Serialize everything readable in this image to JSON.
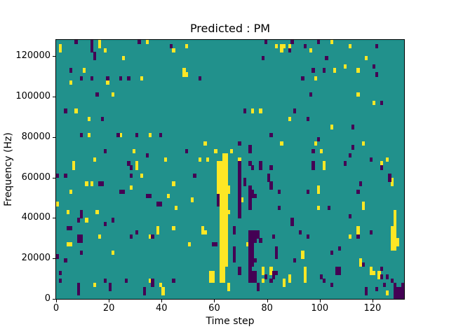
{
  "chart_data": {
    "type": "heatmap",
    "title": "Predicted : PM",
    "xlabel": "Time step",
    "ylabel": "Frequency (Hz)",
    "x_ticks": [
      0,
      20,
      40,
      60,
      80,
      100,
      120
    ],
    "y_ticks": [
      0,
      20000,
      40000,
      60000,
      80000,
      100000,
      120000
    ],
    "xlim": [
      0,
      132
    ],
    "ylim": [
      0,
      128000
    ],
    "grid_cols": 132,
    "grid_rows": 64,
    "row_height_hz": 2000,
    "colormap": "viridis",
    "colors": {
      "mid_value": "#21918c",
      "high_value": "#fde725",
      "low_value": "#440154",
      "figure_background": "#ffffff",
      "text": "#000000"
    },
    "legend_position": "none",
    "grid_lines": false,
    "cells": {
      "runs_format": "[column, row_start, row_end] inclusive vertical runs; row 0 = bottom (0 Hz), col 0 = leftmost time step",
      "yellow_runs": [
        [
          0,
          23,
          23
        ],
        [
          1,
          61,
          62
        ],
        [
          4,
          13,
          13
        ],
        [
          4,
          21,
          21
        ],
        [
          5,
          13,
          13
        ],
        [
          5,
          26,
          26
        ],
        [
          5,
          53,
          53
        ],
        [
          6,
          32,
          33
        ],
        [
          7,
          46,
          46
        ],
        [
          10,
          56,
          56
        ],
        [
          11,
          19,
          19
        ],
        [
          11,
          28,
          28
        ],
        [
          12,
          40,
          40
        ],
        [
          12,
          44,
          44
        ],
        [
          13,
          28,
          28
        ],
        [
          14,
          3,
          3
        ],
        [
          14,
          34,
          34
        ],
        [
          15,
          21,
          21
        ],
        [
          16,
          15,
          15
        ],
        [
          16,
          62,
          63
        ],
        [
          18,
          61,
          61
        ],
        [
          19,
          53,
          53
        ],
        [
          21,
          11,
          11
        ],
        [
          21,
          50,
          50
        ],
        [
          24,
          40,
          40
        ],
        [
          25,
          59,
          59
        ],
        [
          28,
          27,
          27
        ],
        [
          29,
          36,
          36
        ],
        [
          30,
          32,
          33
        ],
        [
          32,
          30,
          30
        ],
        [
          32,
          54,
          54
        ],
        [
          34,
          63,
          63
        ],
        [
          35,
          4,
          4
        ],
        [
          35,
          15,
          15
        ],
        [
          35,
          40,
          40
        ],
        [
          38,
          16,
          17
        ],
        [
          39,
          3,
          3
        ],
        [
          40,
          1,
          2
        ],
        [
          41,
          34,
          34
        ],
        [
          42,
          25,
          25
        ],
        [
          44,
          17,
          17
        ],
        [
          44,
          28,
          28
        ],
        [
          44,
          61,
          61
        ],
        [
          45,
          22,
          22
        ],
        [
          48,
          55,
          56
        ],
        [
          49,
          55,
          55
        ],
        [
          49,
          62,
          62
        ],
        [
          50,
          13,
          13
        ],
        [
          51,
          24,
          24
        ],
        [
          54,
          34,
          34
        ],
        [
          55,
          16,
          17
        ],
        [
          56,
          16,
          16
        ],
        [
          56,
          38,
          38
        ],
        [
          57,
          34,
          34
        ],
        [
          58,
          4,
          6
        ],
        [
          59,
          4,
          6
        ],
        [
          60,
          36,
          36
        ],
        [
          61,
          26,
          33
        ],
        [
          62,
          4,
          33
        ],
        [
          63,
          4,
          35
        ],
        [
          64,
          8,
          35
        ],
        [
          65,
          2,
          3
        ],
        [
          65,
          21,
          21
        ],
        [
          65,
          26,
          27
        ],
        [
          66,
          36,
          36
        ],
        [
          69,
          34,
          34
        ],
        [
          70,
          24,
          24
        ],
        [
          72,
          13,
          13
        ],
        [
          74,
          46,
          46
        ],
        [
          77,
          46,
          46
        ],
        [
          78,
          4,
          4
        ],
        [
          78,
          6,
          7
        ],
        [
          81,
          6,
          7
        ],
        [
          83,
          62,
          62
        ],
        [
          85,
          38,
          38
        ],
        [
          85,
          61,
          62
        ],
        [
          86,
          3,
          4
        ],
        [
          86,
          62,
          62
        ],
        [
          88,
          4,
          5
        ],
        [
          88,
          44,
          44
        ],
        [
          88,
          62,
          62
        ],
        [
          93,
          10,
          11
        ],
        [
          94,
          4,
          7
        ],
        [
          96,
          61,
          61
        ],
        [
          98,
          38,
          38
        ],
        [
          98,
          54,
          54
        ],
        [
          99,
          22,
          22
        ],
        [
          99,
          26,
          27
        ],
        [
          100,
          36,
          36
        ],
        [
          101,
          32,
          33
        ],
        [
          104,
          42,
          42
        ],
        [
          104,
          63,
          63
        ],
        [
          105,
          56,
          56
        ],
        [
          109,
          57,
          57
        ],
        [
          111,
          15,
          15
        ],
        [
          111,
          62,
          62
        ],
        [
          114,
          16,
          17
        ],
        [
          114,
          50,
          50
        ],
        [
          114,
          56,
          56
        ],
        [
          115,
          8,
          9
        ],
        [
          116,
          22,
          23
        ],
        [
          116,
          38,
          38
        ],
        [
          117,
          59,
          59
        ],
        [
          119,
          6,
          7
        ],
        [
          120,
          6,
          6
        ],
        [
          120,
          48,
          48
        ],
        [
          122,
          5,
          6
        ],
        [
          123,
          33,
          33
        ],
        [
          125,
          1,
          1
        ],
        [
          125,
          34,
          34
        ],
        [
          127,
          12,
          17
        ],
        [
          127,
          28,
          29
        ],
        [
          128,
          12,
          21
        ],
        [
          129,
          13,
          14
        ]
      ],
      "dark_runs": [
        [
          0,
          10,
          10
        ],
        [
          0,
          30,
          30
        ],
        [
          1,
          4,
          4
        ],
        [
          1,
          6,
          6
        ],
        [
          3,
          9,
          9
        ],
        [
          3,
          30,
          30
        ],
        [
          3,
          46,
          46
        ],
        [
          4,
          17,
          17
        ],
        [
          5,
          17,
          17
        ],
        [
          5,
          56,
          56
        ],
        [
          7,
          63,
          63
        ],
        [
          8,
          1,
          3
        ],
        [
          8,
          14,
          15
        ],
        [
          8,
          19,
          19
        ],
        [
          9,
          11,
          11
        ],
        [
          9,
          14,
          15
        ],
        [
          9,
          20,
          21
        ],
        [
          9,
          40,
          40
        ],
        [
          9,
          54,
          54
        ],
        [
          13,
          54,
          54
        ],
        [
          13,
          61,
          63
        ],
        [
          14,
          59,
          60
        ],
        [
          15,
          50,
          50
        ],
        [
          16,
          28,
          28
        ],
        [
          17,
          28,
          28
        ],
        [
          17,
          44,
          44
        ],
        [
          18,
          4,
          4
        ],
        [
          18,
          18,
          18
        ],
        [
          18,
          36,
          36
        ],
        [
          19,
          54,
          54
        ],
        [
          20,
          2,
          3
        ],
        [
          21,
          19,
          19
        ],
        [
          23,
          40,
          40
        ],
        [
          24,
          26,
          26
        ],
        [
          24,
          54,
          54
        ],
        [
          25,
          26,
          26
        ],
        [
          26,
          4,
          4
        ],
        [
          27,
          33,
          33
        ],
        [
          27,
          54,
          54
        ],
        [
          28,
          15,
          15
        ],
        [
          28,
          30,
          30
        ],
        [
          28,
          32,
          32
        ],
        [
          30,
          16,
          16
        ],
        [
          30,
          40,
          40
        ],
        [
          31,
          63,
          63
        ],
        [
          33,
          1,
          2
        ],
        [
          34,
          25,
          25
        ],
        [
          34,
          35,
          35
        ],
        [
          35,
          25,
          25
        ],
        [
          36,
          3,
          4
        ],
        [
          36,
          15,
          15
        ],
        [
          38,
          23,
          23
        ],
        [
          39,
          23,
          23
        ],
        [
          39,
          40,
          40
        ],
        [
          43,
          62,
          62
        ],
        [
          44,
          4,
          4
        ],
        [
          49,
          36,
          36
        ],
        [
          52,
          30,
          30
        ],
        [
          54,
          54,
          54
        ],
        [
          59,
          13,
          13
        ],
        [
          60,
          13,
          13
        ],
        [
          61,
          23,
          25
        ],
        [
          67,
          9,
          12
        ],
        [
          67,
          16,
          17
        ],
        [
          69,
          6,
          7
        ],
        [
          69,
          20,
          33
        ],
        [
          69,
          38,
          38
        ],
        [
          71,
          28,
          29
        ],
        [
          71,
          46,
          46
        ],
        [
          73,
          4,
          16
        ],
        [
          73,
          22,
          27
        ],
        [
          73,
          33,
          33
        ],
        [
          73,
          36,
          37
        ],
        [
          74,
          4,
          6
        ],
        [
          74,
          8,
          16
        ],
        [
          74,
          25,
          26
        ],
        [
          74,
          32,
          32
        ],
        [
          75,
          4,
          6
        ],
        [
          75,
          9,
          9
        ],
        [
          75,
          14,
          16
        ],
        [
          75,
          25,
          25
        ],
        [
          76,
          2,
          3
        ],
        [
          76,
          15,
          16
        ],
        [
          77,
          14,
          14
        ],
        [
          77,
          32,
          33
        ],
        [
          78,
          59,
          59
        ],
        [
          79,
          5,
          5
        ],
        [
          79,
          63,
          63
        ],
        [
          80,
          29,
          30
        ],
        [
          81,
          4,
          4
        ],
        [
          81,
          27,
          28
        ],
        [
          81,
          32,
          32
        ],
        [
          81,
          40,
          40
        ],
        [
          82,
          5,
          6
        ],
        [
          82,
          15,
          15
        ],
        [
          83,
          6,
          6
        ],
        [
          83,
          10,
          12
        ],
        [
          84,
          22,
          22
        ],
        [
          84,
          26,
          26
        ],
        [
          88,
          61,
          61
        ],
        [
          89,
          18,
          19
        ],
        [
          89,
          63,
          63
        ],
        [
          90,
          9,
          9
        ],
        [
          90,
          46,
          46
        ],
        [
          92,
          16,
          16
        ],
        [
          93,
          54,
          54
        ],
        [
          94,
          62,
          62
        ],
        [
          95,
          15,
          15
        ],
        [
          95,
          26,
          26
        ],
        [
          95,
          44,
          44
        ],
        [
          96,
          50,
          50
        ],
        [
          97,
          32,
          33
        ],
        [
          97,
          36,
          36
        ],
        [
          97,
          56,
          56
        ],
        [
          99,
          39,
          39
        ],
        [
          99,
          63,
          63
        ],
        [
          100,
          5,
          5
        ],
        [
          101,
          4,
          4
        ],
        [
          101,
          56,
          56
        ],
        [
          102,
          59,
          59
        ],
        [
          103,
          22,
          22
        ],
        [
          104,
          3,
          3
        ],
        [
          104,
          11,
          11
        ],
        [
          106,
          6,
          7
        ],
        [
          107,
          6,
          7
        ],
        [
          107,
          12,
          12
        ],
        [
          109,
          33,
          33
        ],
        [
          111,
          20,
          20
        ],
        [
          111,
          35,
          35
        ],
        [
          112,
          37,
          37
        ],
        [
          112,
          42,
          42
        ],
        [
          114,
          15,
          15
        ],
        [
          114,
          26,
          26
        ],
        [
          115,
          28,
          28
        ],
        [
          116,
          8,
          8
        ],
        [
          117,
          1,
          2
        ],
        [
          119,
          16,
          16
        ],
        [
          119,
          34,
          34
        ],
        [
          120,
          57,
          57
        ],
        [
          121,
          2,
          2
        ],
        [
          121,
          55,
          55
        ],
        [
          121,
          62,
          62
        ],
        [
          123,
          5,
          5
        ],
        [
          123,
          7,
          7
        ],
        [
          123,
          32,
          32
        ],
        [
          123,
          48,
          48
        ],
        [
          124,
          3,
          3
        ],
        [
          125,
          5,
          5
        ],
        [
          126,
          29,
          30
        ],
        [
          127,
          4,
          4
        ],
        [
          128,
          0,
          3
        ],
        [
          129,
          0,
          2
        ],
        [
          130,
          0,
          2
        ],
        [
          131,
          0,
          3
        ]
      ]
    }
  }
}
